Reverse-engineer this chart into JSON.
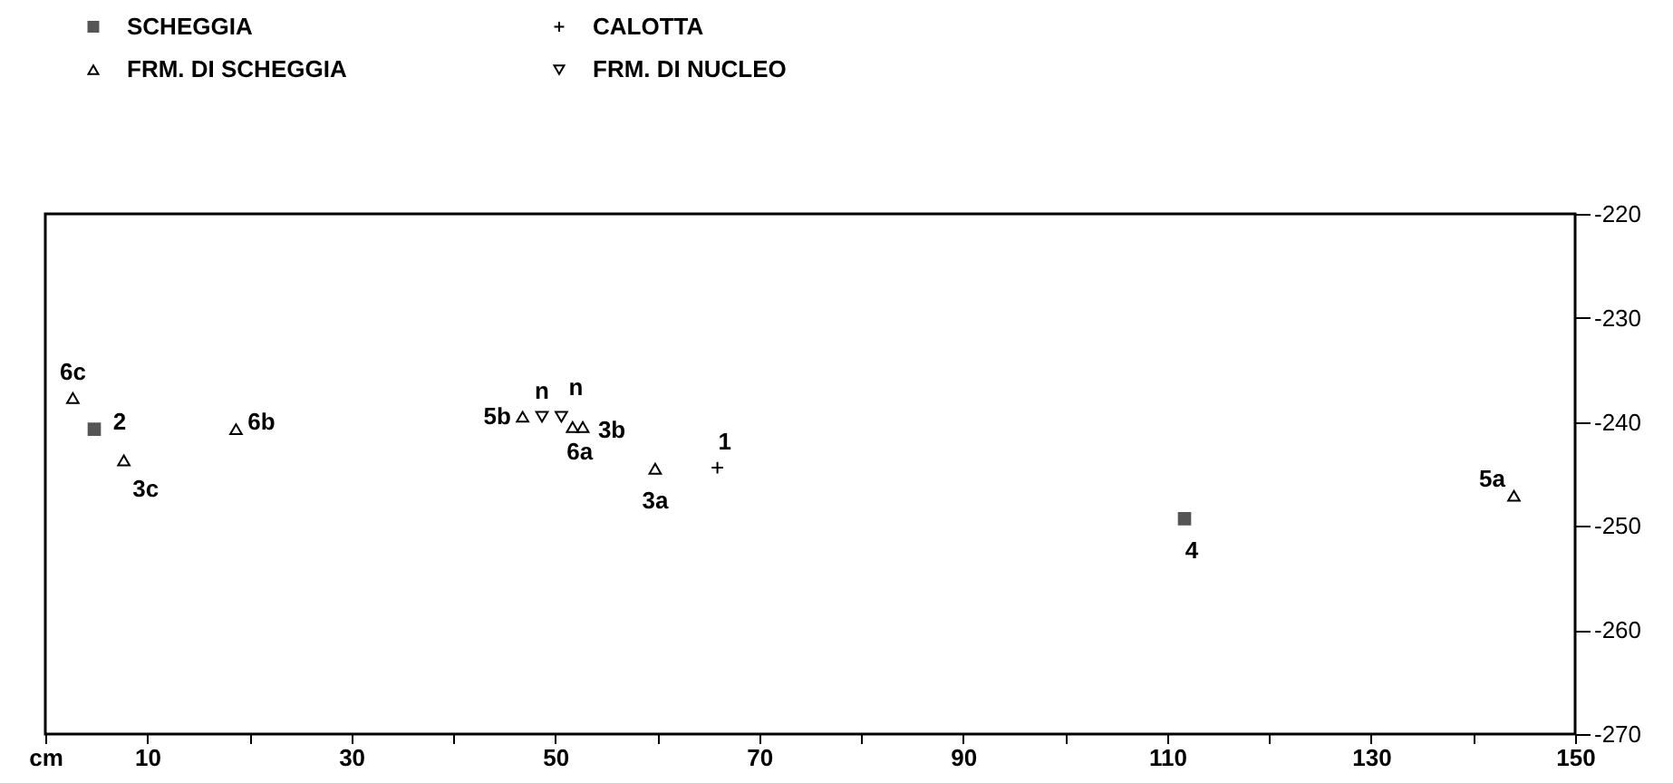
{
  "chart_data": {
    "type": "scatter",
    "series": [
      {
        "name": "SCHEGGIA",
        "color": "#555555",
        "marker": "square",
        "x": [
          4.8,
          111.7
        ],
        "values": [
          -240.7,
          -249.3
        ]
      },
      {
        "name": "FRM. DI SCHEGGIA",
        "color": "#000000",
        "marker": "triangle",
        "x": [
          2.7,
          7.7,
          18.7,
          46.8,
          51.7,
          52.7,
          59.8,
          144
        ],
        "values": [
          -237.7,
          -243.7,
          -240.7,
          -239.5,
          -240.5,
          -240.5,
          -244.5,
          -247.1
        ]
      },
      {
        "name": "CALOTTA",
        "color": "#000000",
        "marker": "cross",
        "x": [
          65.9
        ],
        "values": [
          -244.4
        ]
      },
      {
        "name": "FRM. DI NUCLEO",
        "color": "#000000",
        "marker": "triangle-down",
        "x": [
          48.7,
          50.6
        ],
        "values": [
          -239.5,
          -239.5
        ]
      }
    ],
    "annotations": [
      {
        "text": "6c",
        "x": 2.7,
        "y": -237.7
      },
      {
        "text": "2",
        "x": 4.8,
        "y": -240.7
      },
      {
        "text": "3c",
        "x": 7.7,
        "y": -243.7
      },
      {
        "text": "6b",
        "x": 18.7,
        "y": -240.7
      },
      {
        "text": "5b",
        "x": 46.8,
        "y": -239.5
      },
      {
        "text": "n",
        "x": 48.7,
        "y": -239.5
      },
      {
        "text": "n",
        "x": 50.6,
        "y": -239.5
      },
      {
        "text": "6a",
        "x": 51.7,
        "y": -240.5
      },
      {
        "text": "3b",
        "x": 52.7,
        "y": -240.5
      },
      {
        "text": "3a",
        "x": 59.8,
        "y": -244.5
      },
      {
        "text": "1",
        "x": 65.9,
        "y": -244.4
      },
      {
        "text": "4",
        "x": 111.7,
        "y": -249.3
      },
      {
        "text": "5a",
        "x": 144,
        "y": -247.1
      }
    ],
    "xlim": [
      0,
      150
    ],
    "xticks": [
      {
        "value": 0,
        "label": "cm"
      },
      10,
      {
        "value": 20,
        "label": null
      },
      30,
      {
        "value": 40,
        "label": null
      },
      50,
      {
        "value": 60,
        "label": null
      },
      70,
      {
        "value": 80,
        "label": null
      },
      90,
      {
        "value": 100,
        "label": null
      },
      110,
      {
        "value": 120,
        "label": null
      },
      130,
      {
        "value": 140,
        "label": null
      },
      150
    ],
    "ylim": [
      -270,
      -220
    ],
    "yticks": [
      -270,
      -260,
      -250,
      -240,
      -230,
      -220
    ],
    "legend": "top left",
    "grid": false
  }
}
